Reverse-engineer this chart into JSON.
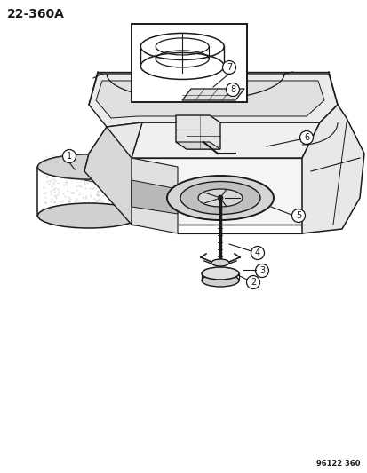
{
  "title": "22-360A",
  "part_number": "96122 360",
  "bg_color": "#ffffff",
  "lc": "#1a1a1a",
  "gray_light": "#cccccc",
  "gray_mid": "#999999",
  "gray_dark": "#666666"
}
